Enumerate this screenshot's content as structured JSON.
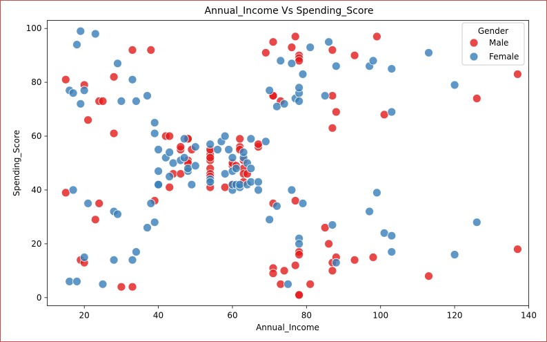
{
  "chart_data": {
    "type": "scatter",
    "title": "Annual_Income Vs Spending_Score",
    "xlabel": "Annual_Income",
    "ylabel": "Spending_Score",
    "xlim": [
      10,
      140
    ],
    "ylim": [
      -3,
      103
    ],
    "xticks": [
      20,
      40,
      60,
      80,
      100,
      120,
      140
    ],
    "yticks": [
      0,
      20,
      40,
      60,
      80,
      100
    ],
    "grid": false,
    "legend": {
      "title": "Gender",
      "placement": "top-right"
    },
    "series": [
      {
        "name": "Male",
        "color": "#e41a1c",
        "points": [
          [
            15,
            39
          ],
          [
            15,
            81
          ],
          [
            19,
            14
          ],
          [
            20,
            13
          ],
          [
            20,
            79
          ],
          [
            21,
            66
          ],
          [
            23,
            29
          ],
          [
            24,
            35
          ],
          [
            24,
            73
          ],
          [
            25,
            73
          ],
          [
            28,
            82
          ],
          [
            28,
            61
          ],
          [
            30,
            4
          ],
          [
            33,
            92
          ],
          [
            33,
            4
          ],
          [
            38,
            92
          ],
          [
            39,
            36
          ],
          [
            42,
            60
          ],
          [
            43,
            60
          ],
          [
            43,
            41
          ],
          [
            44,
            46
          ],
          [
            46,
            55
          ],
          [
            46,
            46
          ],
          [
            46,
            56
          ],
          [
            48,
            59
          ],
          [
            48,
            59
          ],
          [
            48,
            51
          ],
          [
            48,
            50
          ],
          [
            49,
            55
          ],
          [
            54,
            54
          ],
          [
            54,
            53
          ],
          [
            54,
            55
          ],
          [
            54,
            51
          ],
          [
            54,
            48
          ],
          [
            54,
            46
          ],
          [
            54,
            45
          ],
          [
            54,
            41
          ],
          [
            54,
            52
          ],
          [
            58,
            41
          ],
          [
            60,
            49
          ],
          [
            60,
            50
          ],
          [
            60,
            42
          ],
          [
            61,
            49
          ],
          [
            62,
            56
          ],
          [
            62,
            55
          ],
          [
            62,
            59
          ],
          [
            63,
            48
          ],
          [
            63,
            51
          ],
          [
            63,
            43
          ],
          [
            63,
            46
          ],
          [
            64,
            46
          ],
          [
            67,
            56
          ],
          [
            67,
            57
          ],
          [
            69,
            91
          ],
          [
            71,
            35
          ],
          [
            71,
            95
          ],
          [
            71,
            75
          ],
          [
            71,
            11
          ],
          [
            71,
            9
          ],
          [
            71,
            75
          ],
          [
            73,
            5
          ],
          [
            73,
            73
          ],
          [
            74,
            10
          ],
          [
            76,
            93
          ],
          [
            77,
            12
          ],
          [
            77,
            97
          ],
          [
            77,
            36
          ],
          [
            78,
            1
          ],
          [
            78,
            90
          ],
          [
            78,
            89
          ],
          [
            78,
            88
          ],
          [
            78,
            17
          ],
          [
            78,
            16
          ],
          [
            78,
            1
          ],
          [
            81,
            5
          ],
          [
            85,
            26
          ],
          [
            86,
            20
          ],
          [
            87,
            92
          ],
          [
            87,
            63
          ],
          [
            87,
            13
          ],
          [
            87,
            75
          ],
          [
            87,
            10
          ],
          [
            88,
            69
          ],
          [
            88,
            15
          ],
          [
            93,
            90
          ],
          [
            93,
            14
          ],
          [
            98,
            15
          ],
          [
            99,
            97
          ],
          [
            101,
            68
          ],
          [
            113,
            8
          ],
          [
            126,
            74
          ],
          [
            137,
            18
          ],
          [
            137,
            83
          ]
        ]
      },
      {
        "name": "Female",
        "color": "#377eb8",
        "points": [
          [
            16,
            6
          ],
          [
            16,
            77
          ],
          [
            17,
            40
          ],
          [
            17,
            76
          ],
          [
            18,
            6
          ],
          [
            18,
            94
          ],
          [
            19,
            72
          ],
          [
            19,
            99
          ],
          [
            20,
            15
          ],
          [
            20,
            77
          ],
          [
            21,
            35
          ],
          [
            23,
            98
          ],
          [
            25,
            5
          ],
          [
            28,
            14
          ],
          [
            28,
            32
          ],
          [
            29,
            31
          ],
          [
            29,
            87
          ],
          [
            30,
            73
          ],
          [
            33,
            14
          ],
          [
            33,
            81
          ],
          [
            34,
            17
          ],
          [
            34,
            73
          ],
          [
            37,
            26
          ],
          [
            37,
            75
          ],
          [
            38,
            35
          ],
          [
            39,
            28
          ],
          [
            39,
            65
          ],
          [
            39,
            61
          ],
          [
            40,
            55
          ],
          [
            40,
            47
          ],
          [
            40,
            42
          ],
          [
            40,
            42
          ],
          [
            42,
            52
          ],
          [
            43,
            45
          ],
          [
            43,
            54
          ],
          [
            44,
            50
          ],
          [
            46,
            51
          ],
          [
            47,
            52
          ],
          [
            47,
            59
          ],
          [
            48,
            47
          ],
          [
            48,
            48
          ],
          [
            49,
            42
          ],
          [
            50,
            49
          ],
          [
            50,
            56
          ],
          [
            54,
            57
          ],
          [
            54,
            44
          ],
          [
            54,
            43
          ],
          [
            56,
            55
          ],
          [
            57,
            58
          ],
          [
            58,
            60
          ],
          [
            58,
            46
          ],
          [
            59,
            55
          ],
          [
            60,
            52
          ],
          [
            60,
            47
          ],
          [
            60,
            40
          ],
          [
            60,
            42
          ],
          [
            61,
            42
          ],
          [
            61,
            48
          ],
          [
            62,
            41
          ],
          [
            62,
            42
          ],
          [
            63,
            52
          ],
          [
            63,
            54
          ],
          [
            64,
            42
          ],
          [
            64,
            50
          ],
          [
            65,
            48
          ],
          [
            65,
            43
          ],
          [
            65,
            59
          ],
          [
            67,
            43
          ],
          [
            67,
            40
          ],
          [
            69,
            58
          ],
          [
            70,
            29
          ],
          [
            70,
            77
          ],
          [
            72,
            34
          ],
          [
            72,
            71
          ],
          [
            73,
            88
          ],
          [
            74,
            72
          ],
          [
            75,
            5
          ],
          [
            76,
            40
          ],
          [
            76,
            87
          ],
          [
            77,
            74
          ],
          [
            78,
            22
          ],
          [
            78,
            20
          ],
          [
            78,
            76
          ],
          [
            78,
            78
          ],
          [
            78,
            73
          ],
          [
            79,
            35
          ],
          [
            79,
            83
          ],
          [
            81,
            93
          ],
          [
            85,
            75
          ],
          [
            86,
            95
          ],
          [
            87,
            27
          ],
          [
            88,
            13
          ],
          [
            88,
            86
          ],
          [
            97,
            32
          ],
          [
            97,
            86
          ],
          [
            98,
            88
          ],
          [
            99,
            39
          ],
          [
            101,
            24
          ],
          [
            103,
            17
          ],
          [
            103,
            85
          ],
          [
            103,
            23
          ],
          [
            103,
            69
          ],
          [
            113,
            91
          ],
          [
            120,
            16
          ],
          [
            120,
            79
          ],
          [
            126,
            28
          ]
        ]
      }
    ]
  }
}
